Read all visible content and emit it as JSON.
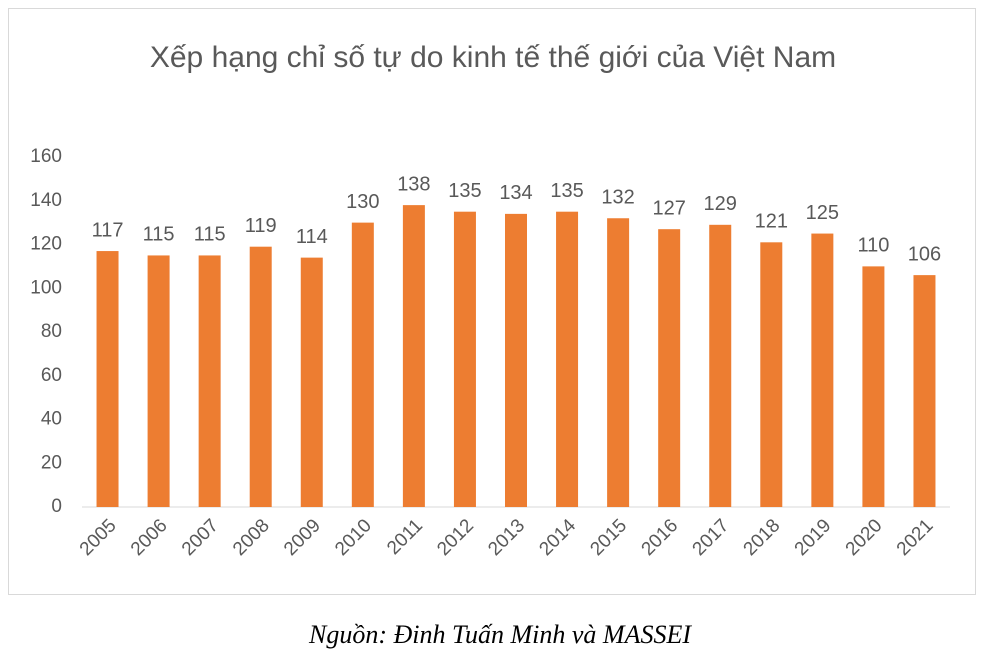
{
  "chart_data": {
    "type": "bar",
    "title": "Xếp hạng chỉ số tự do kinh tế thế giới của Việt Nam",
    "categories": [
      "2005",
      "2006",
      "2007",
      "2008",
      "2009",
      "2010",
      "2011",
      "2012",
      "2013",
      "2014",
      "2015",
      "2016",
      "2017",
      "2018",
      "2019",
      "2020",
      "2021"
    ],
    "values": [
      117,
      115,
      115,
      119,
      114,
      130,
      138,
      135,
      134,
      135,
      132,
      127,
      129,
      121,
      125,
      110,
      106
    ],
    "color": "#ed7d31",
    "ylim": [
      0,
      160
    ],
    "yticks": [
      0,
      20,
      40,
      60,
      80,
      100,
      120,
      140,
      160
    ],
    "grid": false,
    "source": "Nguồn: Đinh Tuấn Minh và MASSEI"
  }
}
